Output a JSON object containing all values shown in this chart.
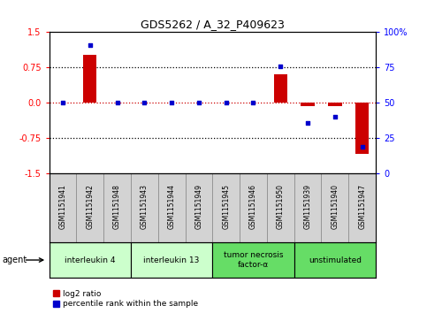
{
  "title": "GDS5262 / A_32_P409623",
  "samples": [
    "GSM1151941",
    "GSM1151942",
    "GSM1151948",
    "GSM1151943",
    "GSM1151944",
    "GSM1151949",
    "GSM1151945",
    "GSM1151946",
    "GSM1151950",
    "GSM1151939",
    "GSM1151940",
    "GSM1151947"
  ],
  "log2_ratio": [
    0.0,
    1.02,
    0.0,
    0.0,
    0.0,
    0.0,
    0.0,
    0.0,
    0.6,
    -0.07,
    -0.07,
    -1.08
  ],
  "percentile": [
    50,
    91,
    50,
    50,
    50,
    50,
    50,
    50,
    76,
    36,
    40,
    19
  ],
  "groups": [
    {
      "label": "interleukin 4",
      "start": 0,
      "end": 2,
      "color": "#ccffcc"
    },
    {
      "label": "interleukin 13",
      "start": 3,
      "end": 5,
      "color": "#ccffcc"
    },
    {
      "label": "tumor necrosis\nfactor-α",
      "start": 6,
      "end": 8,
      "color": "#66dd66"
    },
    {
      "label": "unstimulated",
      "start": 9,
      "end": 11,
      "color": "#66dd66"
    }
  ],
  "ylim_left": [
    -1.5,
    1.5
  ],
  "ylim_right": [
    0,
    100
  ],
  "yticks_left": [
    -1.5,
    -0.75,
    0.0,
    0.75,
    1.5
  ],
  "yticks_right": [
    0,
    25,
    50,
    75,
    100
  ],
  "bar_color": "#cc0000",
  "dot_color": "#0000cc",
  "hline_color": "#cc0000",
  "sample_cell_color": "#d3d3d3",
  "plot_bg": "#ffffff"
}
